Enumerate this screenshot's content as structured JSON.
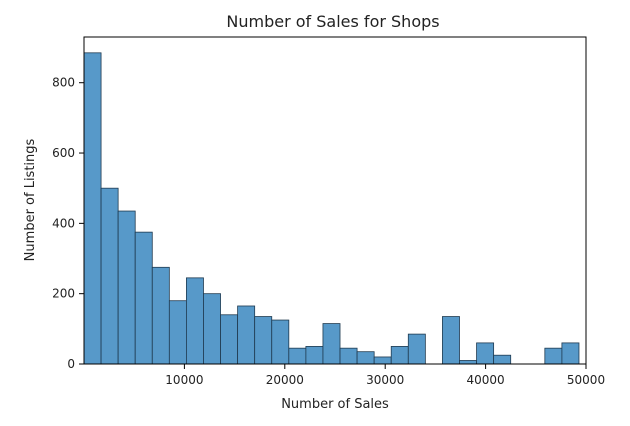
{
  "chart_data": {
    "type": "bar",
    "title": "Number of Sales for Shops",
    "xlabel": "Number of Sales",
    "ylabel": "Number of Listings",
    "xlim": [
      0,
      50000
    ],
    "ylim": [
      0,
      930
    ],
    "x_ticks": [
      10000,
      20000,
      30000,
      40000,
      50000
    ],
    "y_ticks": [
      0,
      200,
      400,
      600,
      800
    ],
    "x_tick_labels": [
      "10000",
      "20000",
      "30000",
      "40000",
      "50000"
    ],
    "y_tick_labels": [
      "0",
      "200",
      "400",
      "600",
      "800"
    ],
    "bin_width": 1700,
    "bin_starts": [
      0,
      1700,
      3400,
      5100,
      6800,
      8500,
      10200,
      11900,
      13600,
      15300,
      17000,
      18700,
      20400,
      22100,
      23800,
      25500,
      27200,
      28900,
      30600,
      32300,
      34000,
      35700,
      37400,
      39100,
      40800,
      42500,
      44200,
      45900,
      47600
    ],
    "values": [
      885,
      500,
      435,
      375,
      275,
      180,
      245,
      200,
      140,
      165,
      135,
      125,
      45,
      50,
      115,
      45,
      35,
      20,
      50,
      85,
      0,
      135,
      10,
      60,
      25,
      0,
      0,
      45,
      60
    ],
    "bar_color": "#5799c9",
    "edge_color": "#1f3a50",
    "grid": false
  }
}
